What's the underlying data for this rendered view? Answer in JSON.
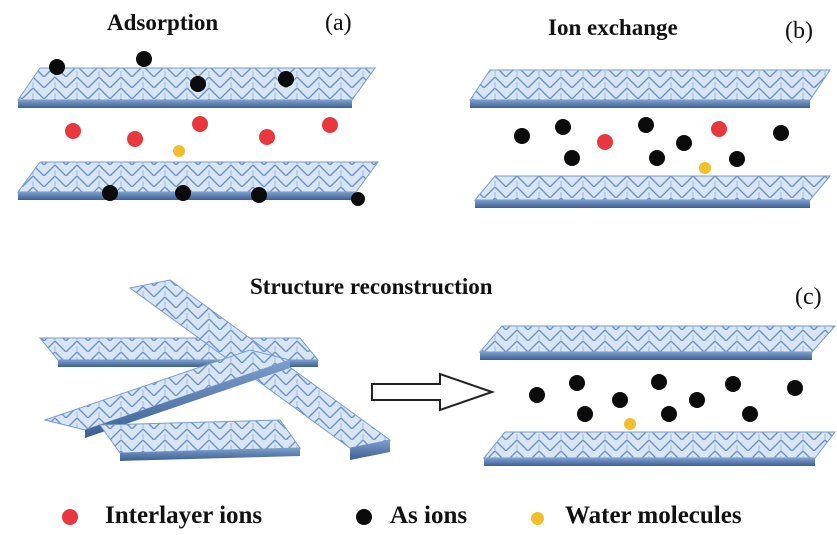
{
  "panels": {
    "a": {
      "title": "Adsorption",
      "tag": "(a)"
    },
    "b": {
      "title": "Ion exchange",
      "tag": "(b)"
    },
    "c": {
      "title": "Structure reconstruction",
      "tag": "(c)"
    }
  },
  "legend": [
    {
      "label": "Interlayer ions",
      "color": "#e8383d"
    },
    {
      "label": "As ions",
      "color": "#0b0b0b"
    },
    {
      "label": "Water molecules",
      "color": "#f2bf2a"
    }
  ],
  "colors": {
    "sheet_top": "#cfe0f3",
    "sheet_side": "#5b7fb4",
    "sheet_edge": "#8fb0d8",
    "arrow": "#222222"
  }
}
